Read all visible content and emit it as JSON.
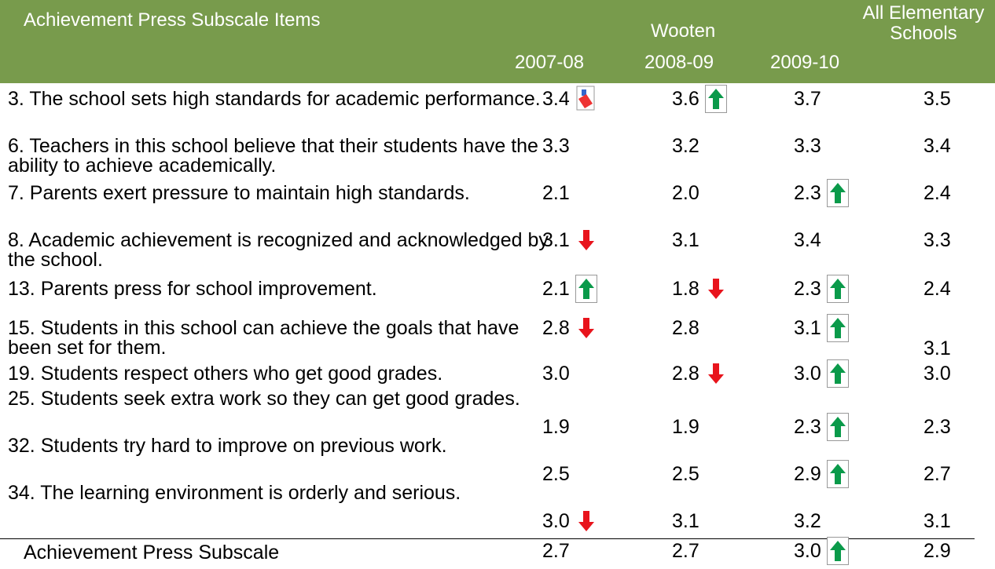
{
  "header": {
    "title": "Achievement Press Subscale Items",
    "group": "Wooten",
    "columns": [
      "2007-08",
      "2008-09",
      "2009-10"
    ],
    "all": "All Elementary Schools"
  },
  "rows": [
    {
      "label": "3. The school sets high standards for academic performance.",
      "values": [
        "3.4",
        "3.6",
        "3.7",
        "3.5"
      ]
    },
    {
      "label": "6. Teachers in this school believe that their students have the ability to achieve academically.",
      "values": [
        "3.3",
        "3.2",
        "3.3",
        "3.4"
      ]
    },
    {
      "label": "7. Parents exert pressure to maintain high standards.",
      "values": [
        "2.1",
        "2.0",
        "2.3",
        "2.4"
      ]
    },
    {
      "label": "8. Academic achievement is recognized and acknowledged by the school.",
      "values": [
        "3.1",
        "3.1",
        "3.4",
        "3.3"
      ]
    },
    {
      "label": "13. Parents press for school improvement.",
      "values": [
        "2.1",
        "1.8",
        "2.3",
        "2.4"
      ]
    },
    {
      "label": "15. Students in this school can achieve the goals that have been set for them.",
      "values": [
        "2.8",
        "2.8",
        "3.1",
        "3.1"
      ]
    },
    {
      "label": "19. Students respect others who get good grades.",
      "values": [
        "3.0",
        "2.8",
        "3.0",
        "3.0"
      ]
    },
    {
      "label": "25. Students seek extra work so they can get good grades.",
      "values": [
        "1.9",
        "1.9",
        "2.3",
        "2.3"
      ]
    },
    {
      "label": "32. Students try hard to improve on previous work.",
      "values": [
        "2.5",
        "2.5",
        "2.9",
        "2.7"
      ]
    },
    {
      "label": "34. The learning environment is orderly and serious.",
      "values": [
        "3.0",
        "3.1",
        "3.2",
        "3.1"
      ]
    }
  ],
  "summary": {
    "label": "Achievement Press Subscale",
    "values": [
      "2.7",
      "2.7",
      "3.0",
      "2.9"
    ]
  }
}
